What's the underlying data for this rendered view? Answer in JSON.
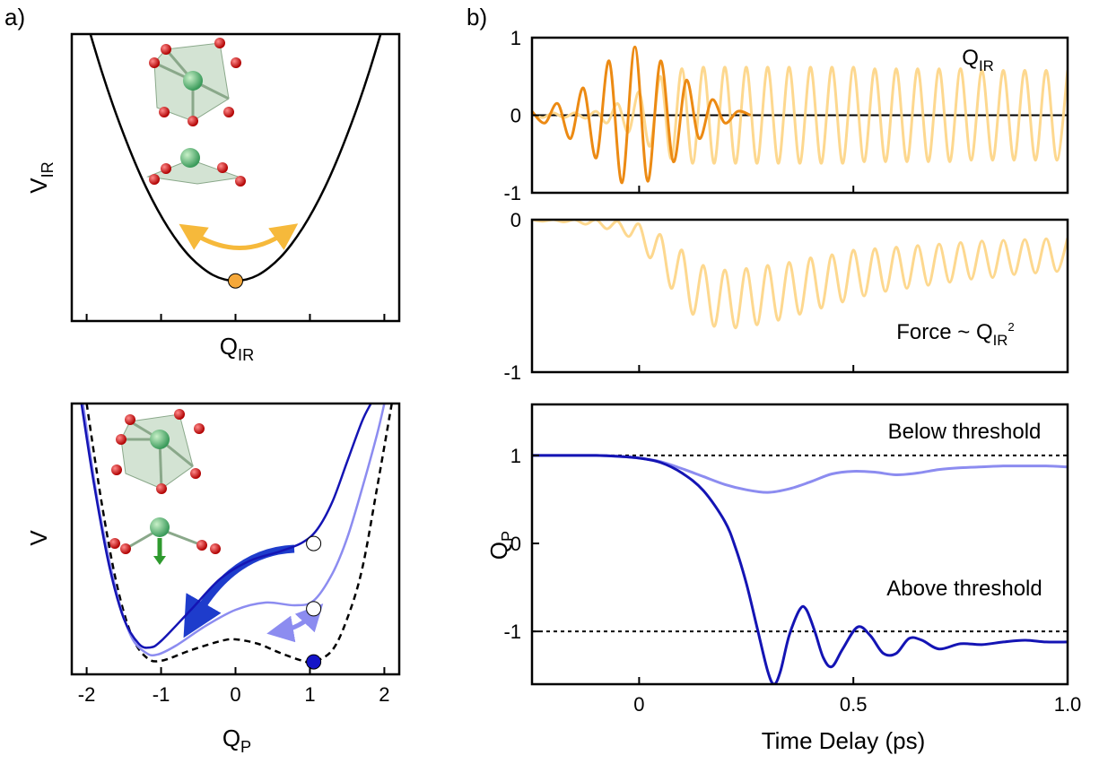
{
  "chart_data": [
    {
      "type": "line",
      "panel_label": "a)",
      "ylabel": {
        "text": "V",
        "sub": "IR"
      },
      "xlabel": {
        "text": "Q",
        "sub": "IR"
      },
      "xlim": [
        -2.2,
        2.2
      ],
      "ylim": [
        0,
        1
      ],
      "xticks": [
        -2,
        -1,
        0,
        1,
        2
      ],
      "tick_labels": false,
      "series": [
        {
          "color": "#000000",
          "x": [
            -1.95,
            -1.8,
            -1.65,
            -1.5,
            -1.35,
            -1.2,
            -1.05,
            -0.9,
            -0.75,
            -0.6,
            -0.45,
            -0.3,
            -0.15,
            0,
            0.15,
            0.3,
            0.45,
            0.6,
            0.75,
            0.9,
            1.05,
            1.2,
            1.35,
            1.5,
            1.65,
            1.8,
            1.95
          ],
          "values": [
            1.0,
            0.872,
            0.755,
            0.649,
            0.552,
            0.465,
            0.389,
            0.323,
            0.267,
            0.221,
            0.186,
            0.16,
            0.145,
            0.14,
            0.145,
            0.16,
            0.186,
            0.221,
            0.267,
            0.323,
            0.389,
            0.465,
            0.552,
            0.649,
            0.755,
            0.872,
            1.0
          ]
        }
      ],
      "markers": [
        {
          "x": 0,
          "y": 0.14,
          "color": "#f5a83a"
        }
      ]
    },
    {
      "type": "line",
      "ylabel": {
        "text": "V"
      },
      "xlabel": {
        "text": "Q",
        "sub": "P"
      },
      "xlim": [
        -2.2,
        2.2
      ],
      "ylim": [
        0,
        1
      ],
      "xticks": [
        -2,
        -1,
        0,
        1,
        2
      ],
      "tick_labels": true,
      "series": [
        {
          "color": "#000000",
          "dashed": true,
          "x": [
            -2.0,
            -1.8,
            -1.6,
            -1.4,
            -1.2,
            -1.0,
            -0.6,
            -0.2,
            0,
            0.3,
            0.6,
            0.9,
            1.05,
            1.3,
            1.5,
            1.7,
            1.9,
            2.1
          ],
          "values": [
            1.0,
            0.636,
            0.338,
            0.146,
            0.063,
            0.05,
            0.089,
            0.123,
            0.129,
            0.113,
            0.079,
            0.05,
            0.046,
            0.089,
            0.205,
            0.387,
            0.685,
            1.0
          ]
        },
        {
          "color": "#8c8cf0",
          "x": [
            -2.05,
            -1.85,
            -1.6,
            -1.4,
            -1.2,
            -1.05,
            -0.8,
            -0.4,
            0,
            0.4,
            0.8,
            1.05,
            1.3,
            1.5,
            1.7,
            1.9,
            2.0
          ],
          "values": [
            1.0,
            0.636,
            0.305,
            0.139,
            0.079,
            0.073,
            0.106,
            0.179,
            0.238,
            0.265,
            0.255,
            0.272,
            0.371,
            0.503,
            0.685,
            0.884,
            1.0
          ]
        },
        {
          "color": "#1414b4",
          "x": [
            -2.07,
            -1.9,
            -1.7,
            -1.5,
            -1.3,
            -1.15,
            -1.0,
            -0.6,
            -0.2,
            0.2,
            0.6,
            0.9,
            1.1,
            1.3,
            1.5,
            1.7,
            1.82
          ],
          "values": [
            1.0,
            0.7,
            0.404,
            0.205,
            0.113,
            0.099,
            0.123,
            0.238,
            0.354,
            0.42,
            0.454,
            0.487,
            0.536,
            0.636,
            0.785,
            0.934,
            1.0
          ]
        }
      ],
      "markers": [
        {
          "x": 1.05,
          "y": 0.483,
          "color": "#ffffff"
        },
        {
          "x": 1.05,
          "y": 0.242,
          "color": "#ffffff"
        },
        {
          "x": 1.05,
          "y": 0.046,
          "color": "#1414c8"
        }
      ]
    },
    {
      "type": "line",
      "panel_label": "b)",
      "xlim": [
        -0.25,
        1.0
      ],
      "ylim": [
        -1,
        1
      ],
      "yticks": [
        -1,
        0,
        1
      ],
      "xticks": [
        0,
        0.5,
        1
      ],
      "tick_labels": false,
      "hlines": [
        {
          "y": 0,
          "dashed": false
        }
      ],
      "annotations": [
        {
          "text": "Q",
          "sub": "IR"
        }
      ],
      "series": [
        {
          "color": "#fdd88f",
          "x": [
            -0.25,
            -0.225,
            -0.2,
            -0.175,
            -0.15,
            -0.125,
            -0.1,
            -0.075,
            -0.05,
            -0.025,
            0,
            0.025,
            0.05,
            0.075,
            0.1,
            0.125,
            0.15,
            0.175,
            0.2,
            0.225,
            0.25,
            0.275,
            0.3,
            0.325,
            0.35,
            0.375,
            0.4,
            0.425,
            0.45,
            0.475,
            0.5,
            0.525,
            0.55,
            0.575,
            0.6,
            0.625,
            0.65,
            0.675,
            0.7,
            0.725,
            0.75,
            0.775,
            0.8,
            0.825,
            0.85,
            0.875,
            0.9,
            0.925,
            0.95,
            0.975,
            1
          ],
          "values": [
            0.02,
            -0.03,
            0.03,
            -0.03,
            0.03,
            -0.04,
            0.05,
            -0.1,
            0.15,
            -0.22,
            0.3,
            -0.4,
            0.5,
            -0.56,
            0.6,
            -0.62,
            0.62,
            -0.62,
            0.62,
            -0.62,
            0.62,
            -0.62,
            0.62,
            -0.62,
            0.62,
            -0.62,
            0.62,
            -0.62,
            0.62,
            -0.62,
            0.62,
            -0.6,
            0.6,
            -0.6,
            0.6,
            -0.6,
            0.6,
            -0.6,
            0.6,
            -0.6,
            0.6,
            -0.58,
            0.58,
            -0.58,
            0.58,
            -0.58,
            0.58,
            -0.58,
            0.58,
            -0.58,
            0.58
          ]
        },
        {
          "color": "#ec8a13",
          "x": [
            -0.25,
            -0.22,
            -0.19,
            -0.16,
            -0.13,
            -0.1,
            -0.07,
            -0.04,
            -0.01,
            0.02,
            0.05,
            0.08,
            0.11,
            0.14,
            0.17,
            0.2,
            0.23,
            0.26
          ],
          "values": [
            0.05,
            -0.1,
            0.15,
            -0.3,
            0.35,
            -0.55,
            0.7,
            -0.87,
            0.88,
            -0.85,
            0.7,
            -0.6,
            0.45,
            -0.3,
            0.2,
            -0.1,
            0.05,
            0
          ]
        }
      ]
    },
    {
      "type": "line",
      "xlim": [
        -0.25,
        1.0
      ],
      "ylim": [
        -1,
        0
      ],
      "yticks": [
        -1,
        0
      ],
      "xticks": [
        0,
        0.5,
        1
      ],
      "tick_labels": false,
      "annotations": [
        {
          "text": "Force ~ Q",
          "sub": "IR",
          "sup": "2"
        }
      ],
      "series": [
        {
          "color": "#fdd88f",
          "x": [
            -0.25,
            -0.225,
            -0.2,
            -0.175,
            -0.15,
            -0.125,
            -0.1,
            -0.075,
            -0.05,
            -0.025,
            0,
            0.025,
            0.05,
            0.075,
            0.1,
            0.125,
            0.15,
            0.175,
            0.2,
            0.225,
            0.25,
            0.275,
            0.3,
            0.325,
            0.35,
            0.375,
            0.4,
            0.425,
            0.45,
            0.475,
            0.5,
            0.525,
            0.55,
            0.575,
            0.6,
            0.625,
            0.65,
            0.675,
            0.7,
            0.725,
            0.75,
            0.775,
            0.8,
            0.825,
            0.85,
            0.875,
            0.9,
            0.925,
            0.95,
            0.975,
            1
          ],
          "values": [
            0,
            -0.01,
            0,
            -0.015,
            0,
            -0.03,
            0,
            -0.06,
            -0.01,
            -0.11,
            -0.03,
            -0.25,
            -0.1,
            -0.45,
            -0.2,
            -0.62,
            -0.3,
            -0.7,
            -0.33,
            -0.71,
            -0.32,
            -0.69,
            -0.3,
            -0.66,
            -0.28,
            -0.62,
            -0.25,
            -0.58,
            -0.23,
            -0.54,
            -0.2,
            -0.5,
            -0.19,
            -0.47,
            -0.18,
            -0.45,
            -0.17,
            -0.43,
            -0.16,
            -0.41,
            -0.15,
            -0.39,
            -0.14,
            -0.38,
            -0.135,
            -0.36,
            -0.13,
            -0.35,
            -0.125,
            -0.34,
            -0.12
          ]
        }
      ]
    },
    {
      "type": "line",
      "xlim": [
        -0.25,
        1.0
      ],
      "ylim": [
        -1.6,
        1.58
      ],
      "yticks": [
        -1,
        0,
        1
      ],
      "xticks": [
        0,
        0.5,
        {
          "value": 1,
          "label": "1.0"
        }
      ],
      "tick_labels": true,
      "xlabel": {
        "text": "Time Delay (ps)"
      },
      "ylabel": {
        "text": "Q",
        "sub": "P"
      },
      "hlines": [
        {
          "y": 1,
          "dashed": true
        },
        {
          "y": -1,
          "dashed": true
        }
      ],
      "annotations": [
        {
          "text": "Below threshold"
        },
        {
          "text": "Above threshold"
        }
      ],
      "series": [
        {
          "color": "#8c8cf0",
          "x": [
            -0.25,
            -0.2,
            -0.15,
            -0.1,
            -0.05,
            0,
            0.05,
            0.1,
            0.15,
            0.2,
            0.25,
            0.3,
            0.35,
            0.4,
            0.45,
            0.5,
            0.55,
            0.6,
            0.65,
            0.7,
            0.75,
            0.8,
            0.85,
            0.9,
            0.95,
            1.0
          ],
          "values": [
            1,
            1,
            1,
            1,
            0.99,
            0.97,
            0.93,
            0.85,
            0.76,
            0.67,
            0.61,
            0.58,
            0.62,
            0.7,
            0.79,
            0.82,
            0.81,
            0.78,
            0.8,
            0.84,
            0.86,
            0.87,
            0.88,
            0.88,
            0.88,
            0.87
          ]
        },
        {
          "color": "#1414b4",
          "x": [
            -0.25,
            -0.15,
            -0.1,
            -0.05,
            0,
            0.05,
            0.1,
            0.15,
            0.2,
            0.225,
            0.25,
            0.275,
            0.3,
            0.315,
            0.33,
            0.35,
            0.375,
            0.39,
            0.41,
            0.43,
            0.45,
            0.475,
            0.51,
            0.54,
            0.57,
            0.6,
            0.63,
            0.66,
            0.7,
            0.75,
            0.8,
            0.85,
            0.9,
            0.95,
            1.0
          ],
          "values": [
            1,
            1,
            1,
            0.99,
            0.97,
            0.92,
            0.8,
            0.6,
            0.25,
            -0.05,
            -0.45,
            -0.95,
            -1.45,
            -1.6,
            -1.45,
            -1.05,
            -0.75,
            -0.75,
            -1.0,
            -1.3,
            -1.4,
            -1.2,
            -0.95,
            -1.05,
            -1.25,
            -1.25,
            -1.08,
            -1.1,
            -1.2,
            -1.14,
            -1.15,
            -1.12,
            -1.1,
            -1.12,
            -1.12
          ]
        }
      ]
    }
  ]
}
